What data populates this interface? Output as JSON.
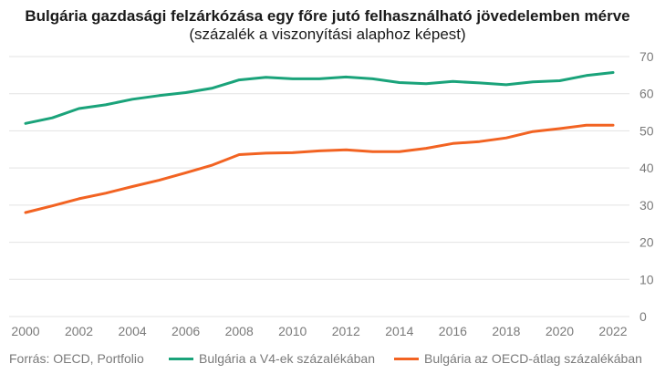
{
  "chart_data": {
    "type": "line",
    "title_bold": "Bulgária gazdasági felzárkózása egy főre jutó felhasználható jövedelemben mérve",
    "title_rest": "(százalék a viszonyítási alaphoz képest)",
    "x": [
      2000,
      2001,
      2002,
      2003,
      2004,
      2005,
      2006,
      2007,
      2008,
      2009,
      2010,
      2011,
      2012,
      2013,
      2014,
      2015,
      2016,
      2017,
      2018,
      2019,
      2020,
      2021,
      2022
    ],
    "x_ticks": [
      "2000",
      "2002",
      "2004",
      "2006",
      "2008",
      "2010",
      "2012",
      "2014",
      "2016",
      "2018",
      "2020",
      "2022"
    ],
    "y_ticks": [
      "0",
      "10",
      "20",
      "30",
      "40",
      "50",
      "60",
      "70"
    ],
    "ylim": [
      0,
      70
    ],
    "grid": true,
    "legend_position": "bottom",
    "series": [
      {
        "name": "Bulgária a V4-ek százalékában",
        "color": "#1aa37a",
        "values": [
          52,
          53.5,
          56,
          57,
          58.5,
          59.5,
          60.3,
          61.5,
          63.7,
          64.4,
          64,
          64,
          64.5,
          64,
          63,
          62.7,
          63.3,
          62.9,
          62.4,
          63.2,
          63.5,
          64.9,
          65.7
        ]
      },
      {
        "name": "Bulgária az OECD-átlag százalékában",
        "color": "#f26322",
        "values": [
          28,
          29.8,
          31.7,
          33.2,
          35,
          36.7,
          38.7,
          40.8,
          43.6,
          44,
          44.1,
          44.6,
          44.9,
          44.4,
          44.4,
          45.3,
          46.6,
          47.1,
          48.1,
          49.8,
          50.6,
          51.5,
          51.5
        ]
      }
    ]
  },
  "footer": {
    "source": "Forrás: OECD, Portfolio"
  }
}
